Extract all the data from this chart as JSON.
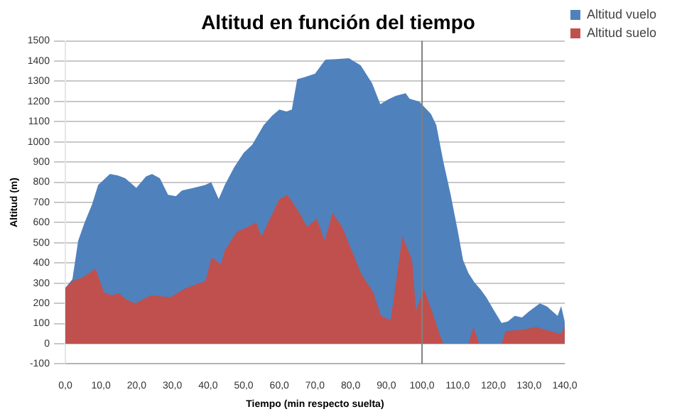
{
  "chart_data": {
    "type": "area",
    "title": "Altitud en función del tiempo",
    "xlabel": "Tiempo (min respecto suelta)",
    "ylabel": "Altitud (m)",
    "series": [
      {
        "name": "Altitud vuelo",
        "color": "#4f81bd",
        "x": [
          0,
          2,
          3.6,
          5.4,
          7.5,
          9.2,
          12.5,
          14.7,
          16.8,
          19.9,
          22.6,
          24.3,
          26.5,
          28.8,
          31,
          32.7,
          36,
          39.2,
          40.9,
          43,
          44.7,
          47.4,
          50,
          52.4,
          55.6,
          58,
          60,
          62,
          63.5,
          65,
          67,
          70,
          72.9,
          76,
          79.5,
          82.8,
          86,
          88.3,
          90.5,
          92.6,
          95.4,
          96.5,
          99.2,
          102.5,
          104,
          106,
          108,
          110,
          111.5,
          113,
          114.7,
          116.4,
          118,
          120,
          122.3,
          124,
          126,
          128,
          130,
          133,
          135,
          138,
          139,
          140
        ],
        "values": [
          276,
          320,
          510,
          600,
          690,
          786,
          841,
          834,
          820,
          772,
          828,
          841,
          820,
          738,
          731,
          759,
          772,
          786,
          800,
          717,
          786,
          876,
          945,
          986,
          1083,
          1130,
          1160,
          1150,
          1160,
          1310,
          1320,
          1338,
          1407,
          1410,
          1414,
          1379,
          1290,
          1186,
          1210,
          1228,
          1241,
          1214,
          1200,
          1138,
          1083,
          900,
          740,
          560,
          414,
          350,
          303,
          269,
          230,
          170,
          103,
          110,
          138,
          130,
          160,
          200,
          185,
          138,
          186,
          110
        ]
      },
      {
        "name": "Altitud suelo",
        "color": "#c0504d",
        "x": [
          0,
          2,
          5,
          8.5,
          10.8,
          13,
          15,
          17,
          19.6,
          24,
          29.4,
          33.8,
          39.3,
          41,
          43.6,
          44.7,
          48,
          53.5,
          55,
          60,
          62.3,
          65.6,
          67.8,
          70.5,
          72.7,
          74.9,
          77.6,
          79.8,
          83,
          86.3,
          88.5,
          91.2,
          94.5,
          97.2,
          98.3,
          100.5,
          102.7,
          104.9,
          106,
          113,
          114.4,
          116,
          122.3,
          123.4,
          128,
          132,
          136,
          139,
          140
        ],
        "values": [
          276,
          310,
          330,
          372,
          255,
          240,
          250,
          220,
          200,
          240,
          230,
          276,
          310,
          428,
          393,
          462,
          552,
          600,
          531,
          717,
          738,
          648,
          579,
          620,
          510,
          648,
          579,
          483,
          345,
          255,
          138,
          117,
          531,
          414,
          166,
          269,
          166,
          48,
          0,
          0,
          83,
          0,
          0,
          62,
          69,
          83,
          62,
          48,
          90
        ]
      }
    ],
    "xlim": [
      0,
      140
    ],
    "xticks": [
      {
        "value": 0,
        "label": "0,0"
      },
      {
        "value": 10,
        "label": "10,0"
      },
      {
        "value": 20,
        "label": "20,0"
      },
      {
        "value": 30,
        "label": "30,0"
      },
      {
        "value": 40,
        "label": "40,0"
      },
      {
        "value": 50,
        "label": "50,0"
      },
      {
        "value": 60,
        "label": "60,0"
      },
      {
        "value": 70,
        "label": "70,0"
      },
      {
        "value": 80,
        "label": "80,0"
      },
      {
        "value": 90,
        "label": "90,0"
      },
      {
        "value": 100,
        "label": "100,0"
      },
      {
        "value": 110,
        "label": "110,0"
      },
      {
        "value": 120,
        "label": "120,0"
      },
      {
        "value": 130,
        "label": "130,0"
      },
      {
        "value": 140,
        "label": "140,0"
      }
    ],
    "ylim": [
      -100,
      1500
    ],
    "yticks": [
      -100,
      0,
      100,
      200,
      300,
      400,
      500,
      600,
      700,
      800,
      900,
      1000,
      1100,
      1200,
      1300,
      1400,
      1500
    ],
    "ref_lines": [
      {
        "axis": "x",
        "value": 100,
        "color": "#808080"
      }
    ],
    "grid": "y",
    "legend": "top right"
  }
}
